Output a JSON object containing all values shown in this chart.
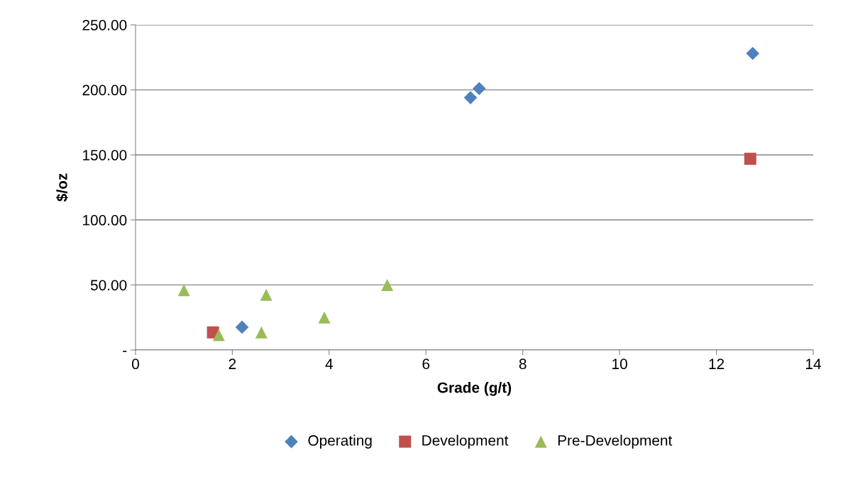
{
  "chart_data": {
    "type": "scatter",
    "xlabel": "Grade (g/t)",
    "ylabel": "$/oz",
    "xlim": [
      0,
      14
    ],
    "xticks": [
      0,
      2,
      4,
      6,
      8,
      10,
      12,
      14
    ],
    "ylim": [
      0,
      250
    ],
    "yticks": [
      {
        "value": 0,
        "label": "-"
      },
      {
        "value": 50,
        "label": "50.00"
      },
      {
        "value": 100,
        "label": "100.00"
      },
      {
        "value": 150,
        "label": "150.00"
      },
      {
        "value": 200,
        "label": "200.00"
      },
      {
        "value": 250,
        "label": "250.00"
      }
    ],
    "grid": "y",
    "legend": "bottom",
    "series": [
      {
        "name": "Operating",
        "color": "#4f81bd",
        "marker": "diamond",
        "x": [
          2.2,
          6.92,
          7.1,
          12.75
        ],
        "values": [
          17.5,
          194,
          201,
          228
        ]
      },
      {
        "name": "Development",
        "color": "#c0504d",
        "marker": "square",
        "x": [
          1.6,
          12.7
        ],
        "values": [
          13.5,
          147
        ]
      },
      {
        "name": "Pre-Development",
        "color": "#9bbb59",
        "marker": "triangle",
        "x": [
          1.0,
          1.72,
          2.6,
          2.7,
          3.9,
          5.2
        ],
        "values": [
          46,
          11.5,
          13.5,
          42.5,
          25,
          50
        ]
      }
    ]
  }
}
